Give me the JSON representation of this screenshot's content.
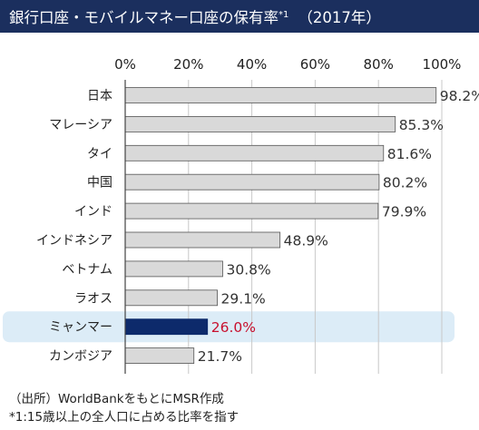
{
  "title": {
    "main": "銀行口座・モバイルマネー口座の保有率",
    "marker": "*1",
    "year": "（2017年）"
  },
  "chart_data": {
    "type": "bar",
    "orientation": "horizontal",
    "categories": [
      "日本",
      "マレーシア",
      "タイ",
      "中国",
      "インド",
      "インドネシア",
      "ベトナム",
      "ラオス",
      "ミャンマー",
      "カンボジア"
    ],
    "values": [
      98.2,
      85.3,
      81.6,
      80.2,
      79.9,
      48.9,
      30.8,
      29.1,
      26.0,
      21.7
    ],
    "value_labels": [
      "98.2%",
      "85.3%",
      "81.6%",
      "80.2%",
      "79.9%",
      "48.9%",
      "30.8%",
      "29.1%",
      "26.0%",
      "21.7%"
    ],
    "x_ticks": [
      0,
      20,
      40,
      60,
      80,
      100
    ],
    "x_tick_labels": [
      "0%",
      "20%",
      "40%",
      "60%",
      "80%",
      "100%"
    ],
    "xlim": [
      0,
      100
    ],
    "highlight_category": "ミャンマー",
    "grid": true,
    "colors": {
      "bar": "#d9d9d9",
      "bar_border": "#555555",
      "highlight_bar": "#0d2a6b",
      "highlight_label": "#c8102e",
      "highlight_band": "#dcecf7",
      "grid": "#c8c8c8"
    }
  },
  "notes": {
    "source": "（出所）WorldBankをもとにMSR作成",
    "footnote": "*1:15歳以上の全人口に占める比率を指す"
  }
}
